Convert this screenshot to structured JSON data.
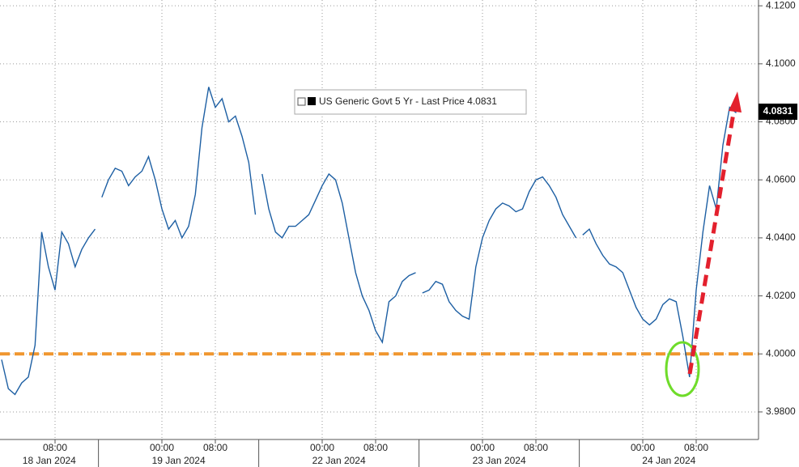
{
  "chart_data": {
    "type": "line",
    "title": "US Generic Govt 5 Yr - Last Price 4.0831",
    "last_price": 4.0831,
    "color": "#1d5fa3",
    "days": [
      {
        "label": "18 Jan 2024",
        "categories": [
          null,
          null,
          null,
          null,
          null,
          null,
          null,
          null,
          "08:00",
          null,
          null,
          null,
          null,
          null,
          null
        ],
        "values": [
          3.998,
          3.988,
          3.986,
          3.99,
          3.992,
          4.003,
          4.042,
          4.03,
          4.022,
          4.042,
          4.038,
          4.03,
          4.036,
          4.04,
          4.043
        ]
      },
      {
        "label": "19 Jan 2024",
        "categories": [
          null,
          null,
          null,
          null,
          null,
          null,
          null,
          null,
          null,
          "00:00",
          null,
          null,
          null,
          null,
          null,
          null,
          null,
          "08:00",
          null,
          null,
          null,
          null,
          null,
          null
        ],
        "values": [
          4.054,
          4.06,
          4.064,
          4.063,
          4.058,
          4.061,
          4.063,
          4.068,
          4.06,
          4.05,
          4.043,
          4.046,
          4.04,
          4.044,
          4.055,
          4.078,
          4.092,
          4.085,
          4.088,
          4.08,
          4.082,
          4.075,
          4.066,
          4.048
        ]
      },
      {
        "label": "22 Jan 2024",
        "categories": [
          null,
          null,
          null,
          null,
          null,
          null,
          null,
          null,
          null,
          "00:00",
          null,
          null,
          null,
          null,
          null,
          null,
          null,
          "08:00",
          null,
          null,
          null,
          null,
          null,
          null
        ],
        "values": [
          4.062,
          4.05,
          4.042,
          4.04,
          4.044,
          4.044,
          4.046,
          4.048,
          4.053,
          4.058,
          4.062,
          4.06,
          4.052,
          4.04,
          4.028,
          4.02,
          4.015,
          4.008,
          4.004,
          4.018,
          4.02,
          4.025,
          4.027,
          4.028
        ]
      },
      {
        "label": "23 Jan 2024",
        "categories": [
          null,
          null,
          null,
          null,
          null,
          null,
          null,
          null,
          null,
          "00:00",
          null,
          null,
          null,
          null,
          null,
          null,
          null,
          "08:00",
          null,
          null,
          null,
          null,
          null,
          null
        ],
        "values": [
          4.021,
          4.022,
          4.025,
          4.024,
          4.018,
          4.015,
          4.013,
          4.012,
          4.03,
          4.04,
          4.046,
          4.05,
          4.052,
          4.051,
          4.049,
          4.05,
          4.056,
          4.06,
          4.061,
          4.058,
          4.054,
          4.048,
          4.044,
          4.04
        ]
      },
      {
        "label": "24 Jan 2024",
        "categories": [
          null,
          null,
          null,
          null,
          null,
          null,
          null,
          null,
          null,
          "00:00",
          null,
          null,
          null,
          null,
          null,
          null,
          null,
          "08:00",
          null,
          null,
          null,
          null,
          null,
          null
        ],
        "values": [
          4.041,
          4.043,
          4.038,
          4.034,
          4.031,
          4.03,
          4.028,
          4.022,
          4.016,
          4.012,
          4.01,
          4.012,
          4.017,
          4.019,
          4.018,
          4.006,
          3.992,
          4.022,
          4.042,
          4.058,
          4.05,
          4.072,
          4.085,
          4.0831
        ]
      }
    ],
    "reference_line": {
      "value": 4,
      "color": "#f0962e"
    },
    "ylim": [
      3.9705,
      4.122
    ],
    "yticks": [
      {
        "value": 3.98,
        "label": "3.9800"
      },
      {
        "value": 4.0,
        "label": "4.0000"
      },
      {
        "value": 4.02,
        "label": "4.0200"
      },
      {
        "value": 4.04,
        "label": "4.0400"
      },
      {
        "value": 4.06,
        "label": "4.0600"
      },
      {
        "value": 4.08,
        "label": "4.0800"
      },
      {
        "value": 4.1,
        "label": "4.1000"
      },
      {
        "value": 4.12,
        "label": "4.1200"
      }
    ],
    "grid": true
  }
}
